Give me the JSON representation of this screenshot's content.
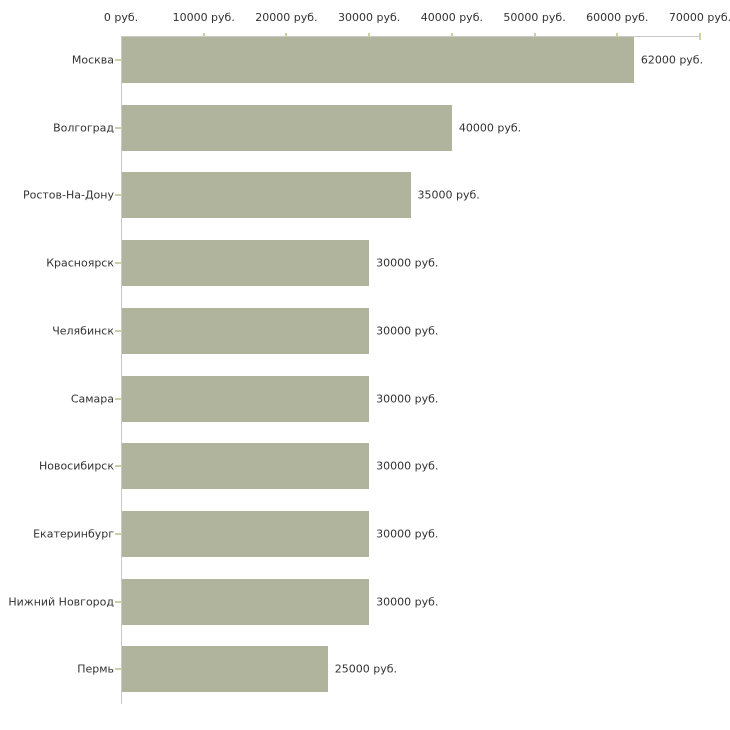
{
  "chart_data": {
    "type": "bar",
    "orientation": "horizontal",
    "title": "",
    "xlabel": "",
    "ylabel": "",
    "categories": [
      "Москва",
      "Волгоград",
      "Ростов-На-Дону",
      "Красноярск",
      "Челябинск",
      "Самара",
      "Новосибирск",
      "Екатеринбург",
      "Нижний Новгород",
      "Пермь"
    ],
    "values": [
      62000,
      40000,
      35000,
      30000,
      30000,
      30000,
      30000,
      30000,
      30000,
      25000
    ],
    "value_labels": [
      "62000 руб.",
      "40000 руб.",
      "35000 руб.",
      "30000 руб.",
      "30000 руб.",
      "30000 руб.",
      "30000 руб.",
      "30000 руб.",
      "30000 руб.",
      "25000 руб."
    ],
    "xlim": [
      0,
      70000
    ],
    "x_ticks": [
      0,
      10000,
      20000,
      30000,
      40000,
      50000,
      60000,
      70000
    ],
    "x_tick_labels": [
      "0 руб.",
      "10000 руб.",
      "20000 руб.",
      "30000 руб.",
      "40000 руб.",
      "50000 руб.",
      "60000 руб.",
      "70000 руб."
    ],
    "legend": null,
    "grid": false,
    "colors": {
      "bar": "#b0b49c",
      "axis_line": "#c9c9c9",
      "tick": "#cfcfa2",
      "text": "#333333",
      "background": "#ffffff"
    }
  }
}
